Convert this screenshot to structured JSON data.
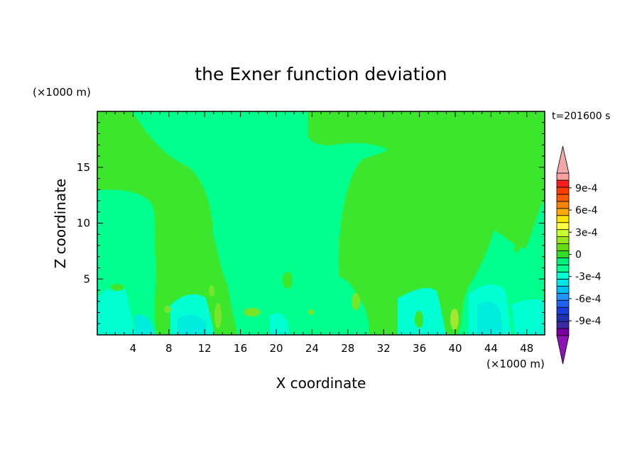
{
  "chart_data": {
    "type": "heatmap",
    "title": "the Exner function deviation",
    "xlabel": "X coordinate",
    "ylabel": "Z coordinate",
    "x_unit": "(×1000 m)",
    "y_unit": "(×1000 m)",
    "time_label": "t=201600 s",
    "xlim": [
      0,
      50
    ],
    "ylim": [
      0,
      20
    ],
    "x_ticks": [
      4,
      8,
      12,
      16,
      20,
      24,
      28,
      32,
      36,
      40,
      44,
      48
    ],
    "y_ticks": [
      5,
      10,
      15
    ],
    "colorbar": {
      "levels": [
        -0.0011,
        -0.001,
        -0.0009,
        -0.0008,
        -0.0007,
        -0.0006,
        -0.0005,
        -0.0004,
        -0.0003,
        -0.0002,
        -0.0001,
        0,
        0.0001,
        0.0002,
        0.0003,
        0.0004,
        0.0005,
        0.0006,
        0.0007,
        0.0008,
        0.0009,
        0.001,
        0.0011
      ],
      "tick_labels": [
        "9e-4",
        "6e-4",
        "3e-4",
        "0",
        "-3e-4",
        "-6e-4",
        "-9e-4"
      ],
      "tick_values": [
        0.0009,
        0.0006,
        0.0003,
        0,
        -0.0003,
        -0.0006,
        -0.0009
      ],
      "colors_low_to_high": [
        "#7800a0",
        "#3c28a0",
        "#2030b0",
        "#1a3ce0",
        "#1f64f0",
        "#1f96ff",
        "#00c0ff",
        "#00e6e6",
        "#00ffd2",
        "#00ff8c",
        "#00f07a",
        "#32dc28",
        "#64dc14",
        "#96e61e",
        "#c8ff32",
        "#ffff3c",
        "#ffe600",
        "#ffaa00",
        "#ff8200",
        "#ff5a00",
        "#ff3c00",
        "#ff1e1e",
        "#ffa0a0"
      ],
      "under_color": "#8c14b4",
      "over_color": "#f0a8a8"
    },
    "field_colors": {
      "near_zero_negative": "#00ff8c",
      "near_zero_positive": "#32e628",
      "small_positive": "#78e628",
      "larger_positive": "#a0e632",
      "small_negative": "#00ffd2",
      "more_negative": "#00e6c8"
    }
  }
}
